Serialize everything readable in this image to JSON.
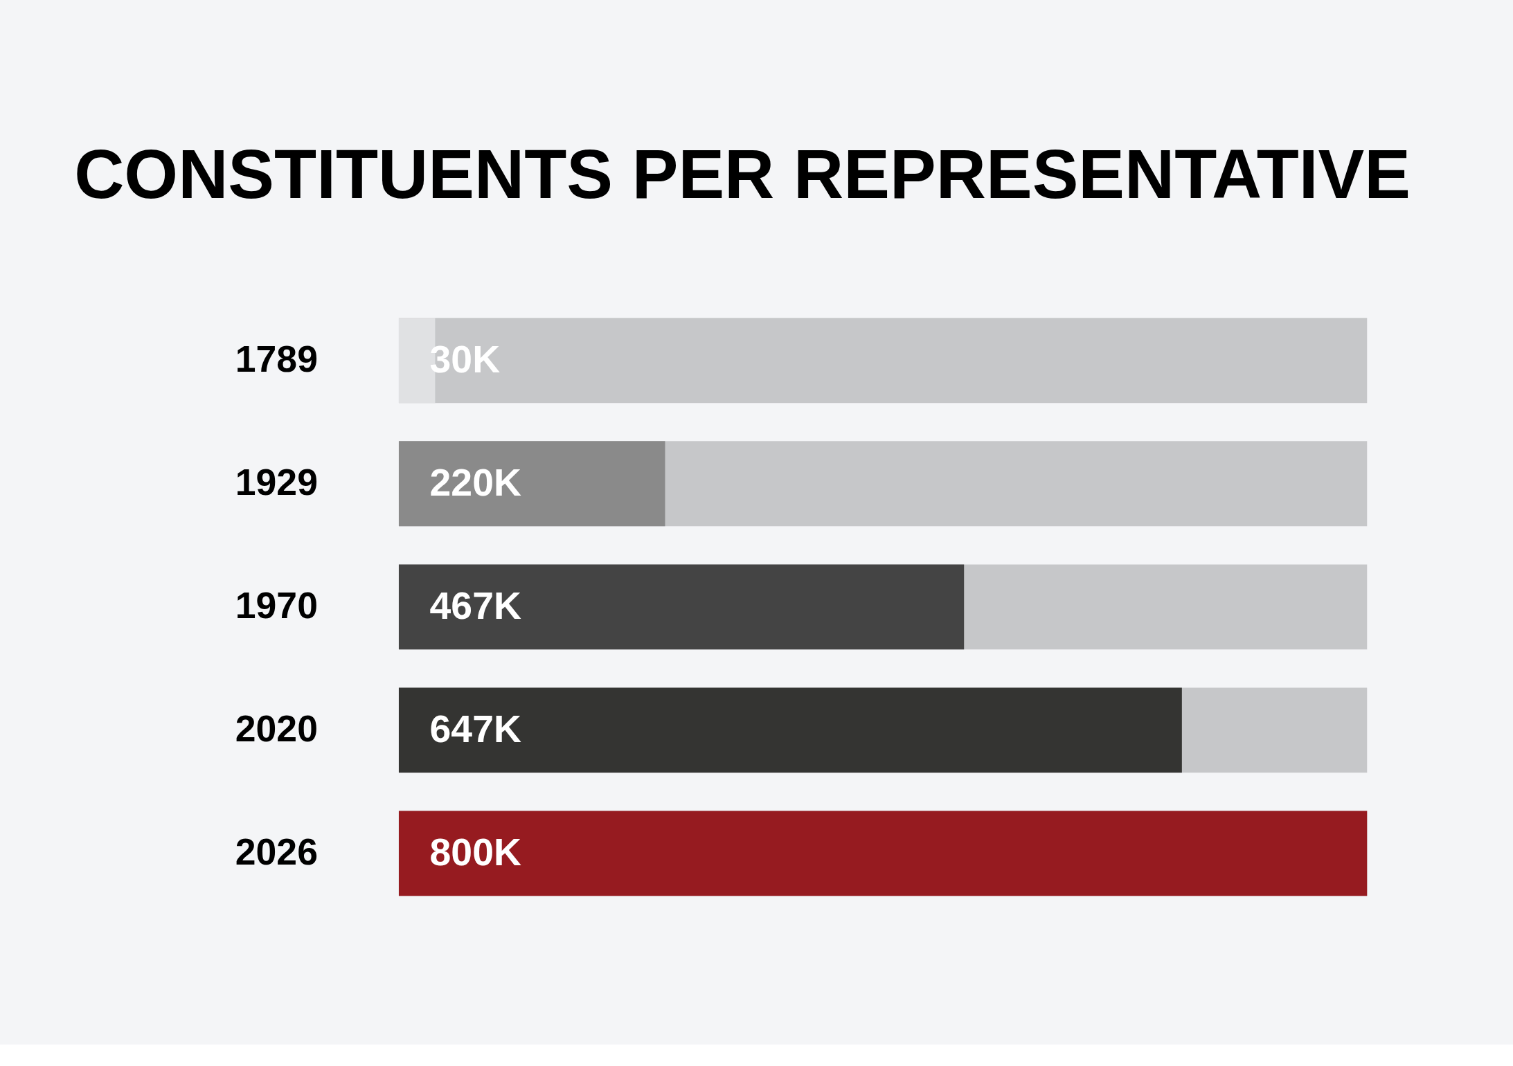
{
  "chart_data": {
    "type": "bar",
    "orientation": "horizontal",
    "title": "CONSTITUENTS PER REPRESENTATIVE",
    "categories": [
      "1789",
      "1929",
      "1970",
      "2020",
      "2026"
    ],
    "xlim": [
      0,
      800
    ],
    "tick_labels": "y",
    "series": [
      {
        "colors": [
          "#e0e1e3",
          "#8a8a8a",
          "#444444",
          "#343432",
          "#961b20"
        ],
        "values": [
          30,
          220,
          467,
          647,
          800
        ],
        "value_labels": [
          "30K",
          "220K",
          "467K",
          "647K",
          "800K"
        ]
      }
    ]
  }
}
